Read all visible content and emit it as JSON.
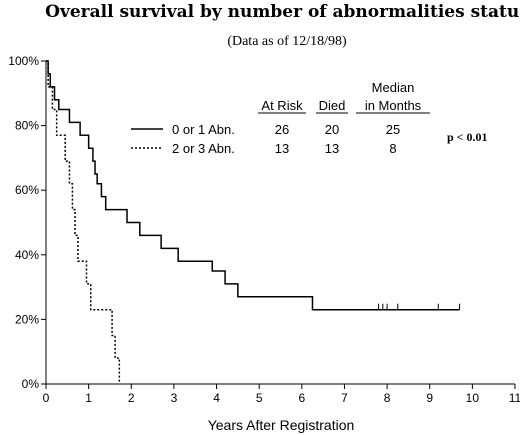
{
  "chart_data": {
    "type": "line",
    "title": "Overall survival by number of abnormalities status",
    "subtitle": "(Data as of 12/18/98)",
    "xlabel": "Years After Registration",
    "ylabel": "",
    "xlim": [
      0,
      11
    ],
    "ylim": [
      0,
      100
    ],
    "x_ticks": [
      "0",
      "1",
      "2",
      "3",
      "4",
      "5",
      "6",
      "7",
      "8",
      "9",
      "10",
      "11"
    ],
    "y_ticks": [
      "0%",
      "20%",
      "40%",
      "60%",
      "80%",
      "100%"
    ],
    "grid": false,
    "table_headers": {
      "at_risk": "At Risk",
      "died": "Died",
      "median_line1": "Median",
      "median_line2": "in Months"
    },
    "p_value": "p < 0.01",
    "series": [
      {
        "name": "0 or 1 Abn.",
        "style": "solid",
        "at_risk": "26",
        "died": "20",
        "median": "25",
        "points": [
          [
            0,
            100
          ],
          [
            0.05,
            96
          ],
          [
            0.1,
            92
          ],
          [
            0.2,
            88
          ],
          [
            0.3,
            85
          ],
          [
            0.55,
            81
          ],
          [
            0.8,
            77
          ],
          [
            1.0,
            73
          ],
          [
            1.1,
            69
          ],
          [
            1.15,
            65
          ],
          [
            1.2,
            62
          ],
          [
            1.3,
            58
          ],
          [
            1.4,
            54
          ],
          [
            1.8,
            54
          ],
          [
            1.9,
            50
          ],
          [
            2.1,
            50
          ],
          [
            2.2,
            46
          ],
          [
            2.6,
            46
          ],
          [
            2.7,
            42
          ],
          [
            3.0,
            42
          ],
          [
            3.1,
            38
          ],
          [
            3.8,
            38
          ],
          [
            3.9,
            35
          ],
          [
            4.1,
            35
          ],
          [
            4.2,
            31
          ],
          [
            4.4,
            31
          ],
          [
            4.5,
            27
          ],
          [
            6.2,
            27
          ],
          [
            6.25,
            23
          ],
          [
            9.7,
            23
          ]
        ],
        "censored": [
          7.8,
          7.9,
          8.0,
          8.25,
          9.2,
          9.7
        ]
      },
      {
        "name": "2 or 3 Abn.",
        "style": "dotted",
        "at_risk": "13",
        "died": "13",
        "median": "8",
        "points": [
          [
            0,
            100
          ],
          [
            0.05,
            92
          ],
          [
            0.15,
            85
          ],
          [
            0.25,
            77
          ],
          [
            0.45,
            69
          ],
          [
            0.55,
            62
          ],
          [
            0.62,
            54
          ],
          [
            0.68,
            46
          ],
          [
            0.75,
            38
          ],
          [
            0.95,
            31
          ],
          [
            1.05,
            23
          ],
          [
            1.55,
            15
          ],
          [
            1.62,
            8
          ],
          [
            1.72,
            0
          ]
        ],
        "censored": []
      }
    ]
  }
}
